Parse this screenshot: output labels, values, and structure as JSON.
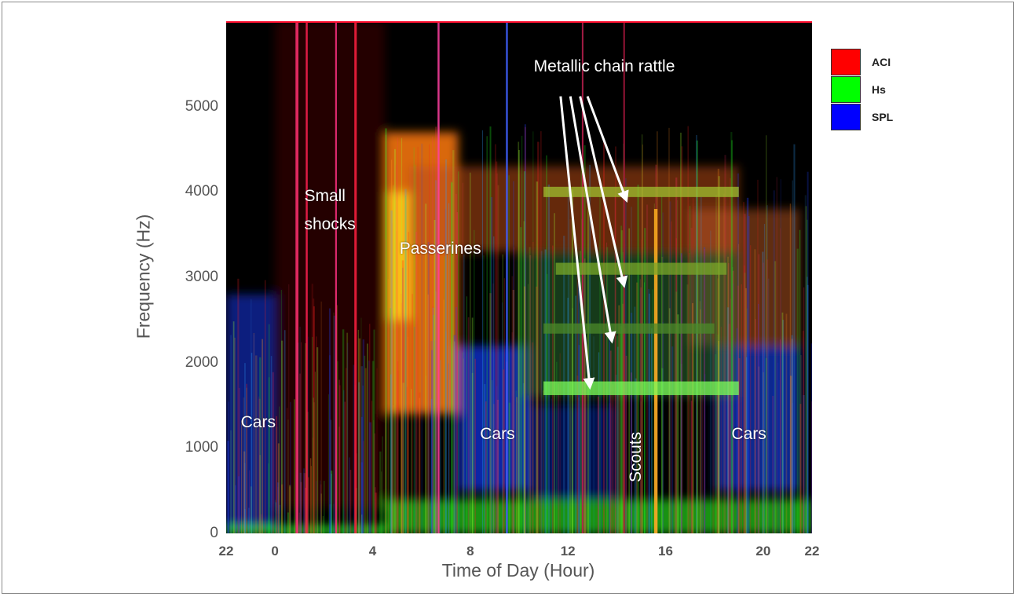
{
  "chart_data": {
    "type": "heatmap",
    "title": "",
    "xlabel": "Time of Day (Hour)",
    "ylabel": "Frequency (Hz)",
    "x_ticks": [
      "22",
      "0",
      "4",
      "8",
      "12",
      "16",
      "20",
      "22"
    ],
    "x_tick_hours": [
      -2,
      0,
      4,
      8,
      12,
      16,
      20,
      22
    ],
    "xlim": [
      -2,
      22
    ],
    "y_ticks": [
      0,
      1000,
      2000,
      3000,
      4000,
      5000
    ],
    "ylim": [
      0,
      6000
    ],
    "legend": {
      "placement": "right",
      "entries": [
        {
          "label": "ACI",
          "color": "#ff0000"
        },
        {
          "label": "Hs",
          "color": "#00ff00"
        },
        {
          "label": "SPL",
          "color": "#0000ff"
        }
      ]
    },
    "regions": [
      {
        "x0": -2,
        "x1": 0,
        "f0": 0,
        "f1": 2800,
        "color": "#0a2aa8",
        "opacity": 0.75
      },
      {
        "x0": 4.5,
        "x1": 7.5,
        "f0": 1400,
        "f1": 4700,
        "color": "#ff7a10",
        "opacity": 0.85
      },
      {
        "x0": 4.6,
        "x1": 5.6,
        "f0": 2500,
        "f1": 4000,
        "color": "#ffd21a",
        "opacity": 0.8
      },
      {
        "x0": 5.5,
        "x1": 19,
        "f0": 3300,
        "f1": 4300,
        "color": "#b84a1a",
        "opacity": 0.55
      },
      {
        "x0": 7.5,
        "x1": 10.5,
        "f0": 500,
        "f1": 2200,
        "color": "#1030d0",
        "opacity": 0.8
      },
      {
        "x0": 10.5,
        "x1": 14,
        "f0": 400,
        "f1": 1500,
        "color": "#0a2090",
        "opacity": 0.55
      },
      {
        "x0": 18,
        "x1": 21.5,
        "f0": 500,
        "f1": 2200,
        "color": "#1535c0",
        "opacity": 0.75
      },
      {
        "x0": 17,
        "x1": 21.5,
        "f0": 2200,
        "f1": 3800,
        "color": "#c05a20",
        "opacity": 0.5
      },
      {
        "x0": 10,
        "x1": 19,
        "f0": 1600,
        "f1": 3300,
        "color": "#2a6a30",
        "opacity": 0.55
      },
      {
        "x0": 4.5,
        "x1": 22,
        "f0": 0,
        "f1": 400,
        "color": "#25d020",
        "opacity": 0.7
      },
      {
        "x0": -2,
        "x1": 4.5,
        "f0": 0,
        "f1": 80,
        "color": "#30ff30",
        "opacity": 0.9
      },
      {
        "x0": 0,
        "x1": 4.5,
        "f0": 300,
        "f1": 6000,
        "color": "#3a0808",
        "opacity": 0.6
      }
    ],
    "bands": [
      {
        "label": "Metallic chain rattle",
        "x0": 11,
        "x1": 19,
        "f": 1700,
        "width": 160,
        "color": "#7cff5a"
      },
      {
        "label": "Metallic chain rattle",
        "x0": 11.5,
        "x1": 18.5,
        "f": 3100,
        "width": 140,
        "color": "#7aa82a"
      },
      {
        "label": "Metallic chain rattle",
        "x0": 11,
        "x1": 19,
        "f": 4000,
        "width": 120,
        "color": "#a0c030"
      },
      {
        "label": "Metallic chain rattle",
        "x0": 11,
        "x1": 18,
        "f": 2400,
        "width": 120,
        "color": "#4c8a2a"
      }
    ],
    "vertical_streaks": [
      {
        "x": 0.9,
        "f1": 6000,
        "color": "#ff3070",
        "width": 0.12
      },
      {
        "x": 1.3,
        "f1": 6000,
        "color": "#ff2050",
        "width": 0.08
      },
      {
        "x": 2.5,
        "f1": 6000,
        "color": "#ff3080",
        "width": 0.07
      },
      {
        "x": 3.3,
        "f1": 6000,
        "color": "#ff2040",
        "width": 0.1
      },
      {
        "x": 6.7,
        "f1": 6000,
        "color": "#ff40a0",
        "width": 0.08
      },
      {
        "x": 9.5,
        "f1": 6000,
        "color": "#4060ff",
        "width": 0.08
      },
      {
        "x": 15.6,
        "f1": 3800,
        "color": "#ffb020",
        "width": 0.14
      },
      {
        "x": 12.6,
        "f1": 6000,
        "color": "#c02050",
        "width": 0.06
      },
      {
        "x": 14.3,
        "f1": 6000,
        "color": "#b01840",
        "width": 0.06
      }
    ],
    "annotations": [
      {
        "text": "Cars",
        "x": -1.4,
        "f": 1300
      },
      {
        "text": "Small",
        "x": 1.2,
        "f": 3950
      },
      {
        "text": "shocks",
        "x": 1.2,
        "f": 3620
      },
      {
        "text": "Passerines",
        "x": 5.1,
        "f": 3330
      },
      {
        "text": "Metallic chain rattle",
        "x": 10.6,
        "f": 5470
      },
      {
        "text": "Cars",
        "x": 8.4,
        "f": 1160
      },
      {
        "text": "Scouts",
        "x": 14.8,
        "f": 620,
        "rotated": true
      },
      {
        "text": "Cars",
        "x": 18.7,
        "f": 1160
      }
    ],
    "arrows": [
      {
        "from": [
          12.8,
          5120
        ],
        "to": [
          14.4,
          3900
        ]
      },
      {
        "from": [
          12.5,
          5120
        ],
        "to": [
          14.3,
          2900
        ]
      },
      {
        "from": [
          12.1,
          5120
        ],
        "to": [
          13.8,
          2250
        ]
      },
      {
        "from": [
          11.7,
          5120
        ],
        "to": [
          12.9,
          1710
        ]
      }
    ]
  }
}
